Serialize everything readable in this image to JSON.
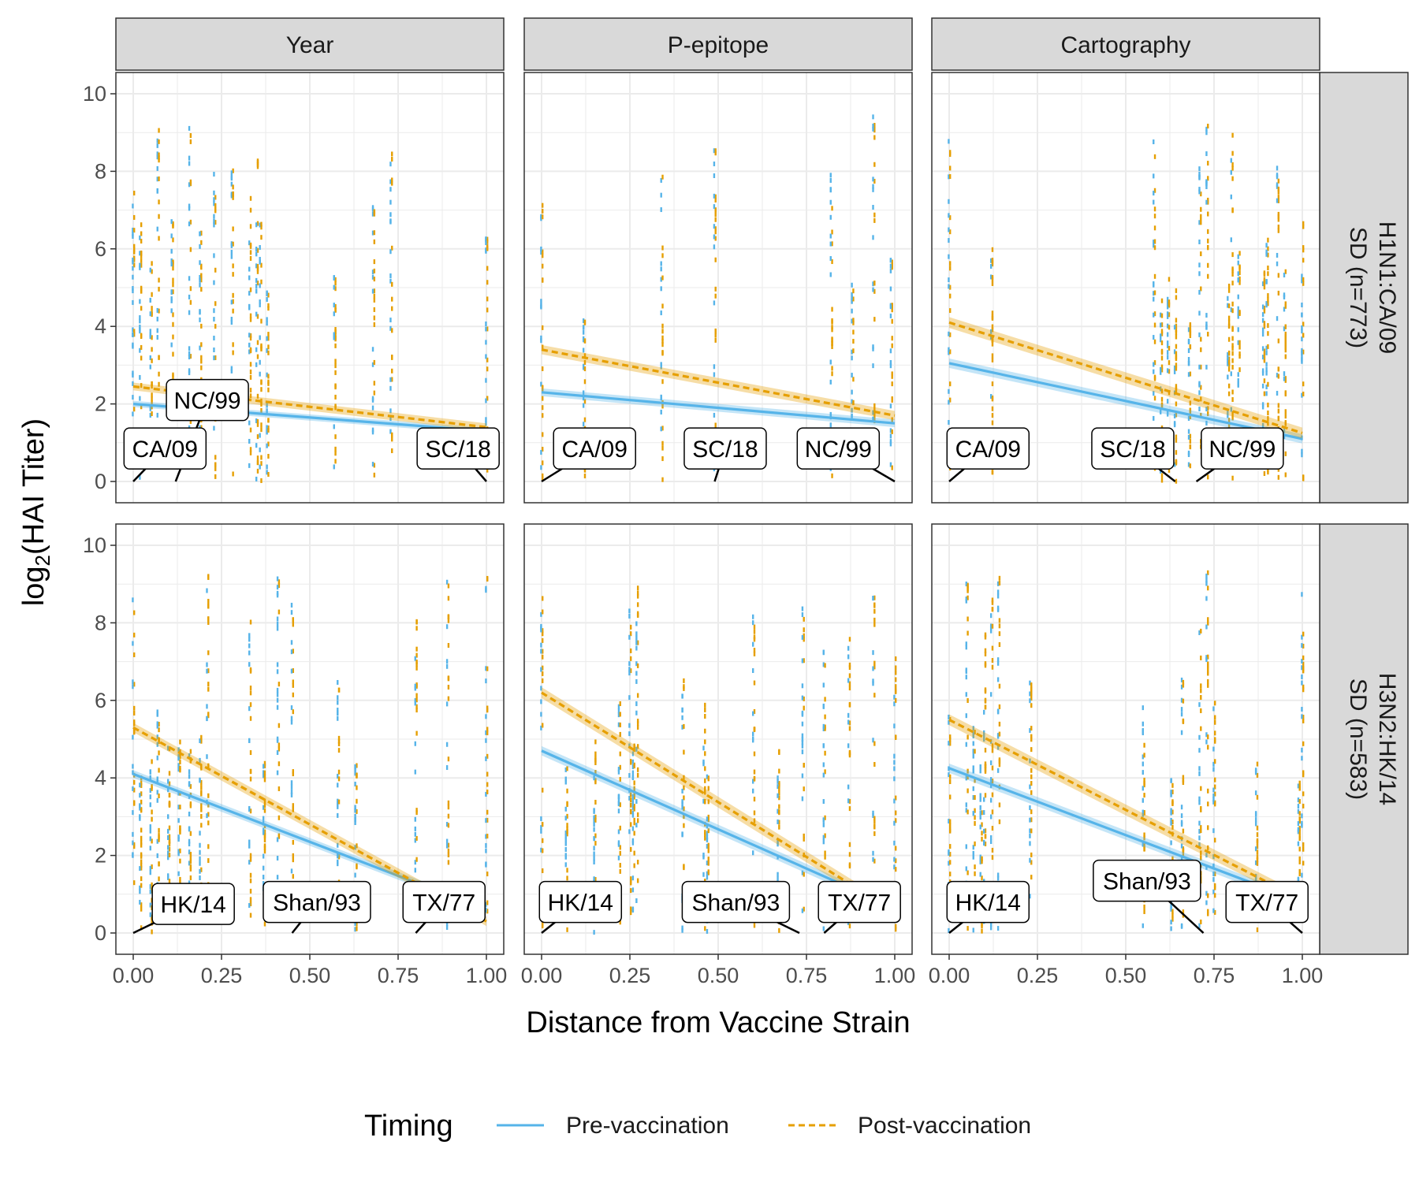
{
  "chart_data": {
    "type": "scatter",
    "xlabel": "Distance from Vaccine Strain",
    "ylabel_base": "log",
    "ylabel_sub": "2",
    "ylabel_rest": "(HAI Titer)",
    "xlim": [
      0,
      1
    ],
    "ylim": [
      0,
      10
    ],
    "x_ticks": [
      "0.00",
      "0.25",
      "0.50",
      "0.75",
      "1.00"
    ],
    "y_ticks": [
      "0",
      "2",
      "4",
      "6",
      "8",
      "10"
    ],
    "grid": true,
    "legend": {
      "position": "bottom",
      "title": "Timing",
      "entries": [
        {
          "label": "Pre-vaccination",
          "color": "#56B4E9",
          "dash": "solid"
        },
        {
          "label": "Post-vaccination",
          "color": "#E69F00",
          "dash": "dashed"
        }
      ]
    },
    "columns": [
      "Year",
      "P-epitope",
      "Cartography"
    ],
    "rows": [
      {
        "line1": "H1N1:CA/09",
        "line2": "SD (n=773)"
      },
      {
        "line1": "H3N2:HK/14",
        "line2": "SD (n=583)"
      }
    ],
    "panels": [
      {
        "row": 0,
        "col": 0,
        "strains_x": [
          0.0,
          0.02,
          0.05,
          0.07,
          0.11,
          0.16,
          0.19,
          0.23,
          0.28,
          0.33,
          0.35,
          0.36,
          0.38,
          0.57,
          0.68,
          0.73,
          1.0
        ],
        "fit_pre": [
          2.0,
          1.3
        ],
        "band_pre": 0.08,
        "fit_post": [
          2.45,
          1.4
        ],
        "band_post": 0.1,
        "labels": [
          {
            "text": "NC/99",
            "x": 0.21,
            "y": 2.1,
            "lx": 0.12,
            "ly": 0.0
          },
          {
            "text": "CA/09",
            "x": 0.09,
            "y": 0.85,
            "lx": 0.0,
            "ly": 0.0
          },
          {
            "text": "SC/18",
            "x": 0.92,
            "y": 0.85,
            "lx": 1.0,
            "ly": 0.0
          }
        ]
      },
      {
        "row": 0,
        "col": 1,
        "strains_x": [
          0.0,
          0.12,
          0.34,
          0.49,
          0.82,
          0.88,
          0.94,
          0.99
        ],
        "fit_pre": [
          2.3,
          1.5
        ],
        "band_pre": 0.1,
        "fit_post": [
          3.4,
          1.7
        ],
        "band_post": 0.12,
        "labels": [
          {
            "text": "CA/09",
            "x": 0.15,
            "y": 0.85,
            "lx": 0.0,
            "ly": 0.0
          },
          {
            "text": "SC/18",
            "x": 0.52,
            "y": 0.85,
            "lx": 0.49,
            "ly": 0.0
          },
          {
            "text": "NC/99",
            "x": 0.84,
            "y": 0.85,
            "lx": 1.0,
            "ly": 0.0
          }
        ]
      },
      {
        "row": 0,
        "col": 2,
        "strains_x": [
          0.0,
          0.12,
          0.58,
          0.6,
          0.62,
          0.64,
          0.68,
          0.71,
          0.73,
          0.79,
          0.8,
          0.82,
          0.89,
          0.9,
          0.93,
          0.95,
          1.0
        ],
        "fit_pre": [
          3.05,
          1.1
        ],
        "band_pre": 0.12,
        "fit_post": [
          4.1,
          1.25
        ],
        "band_post": 0.14,
        "labels": [
          {
            "text": "CA/09",
            "x": 0.11,
            "y": 0.85,
            "lx": 0.0,
            "ly": 0.0
          },
          {
            "text": "SC/18",
            "x": 0.52,
            "y": 0.85,
            "lx": 0.64,
            "ly": 0.0
          },
          {
            "text": "NC/99",
            "x": 0.83,
            "y": 0.85,
            "lx": 0.7,
            "ly": 0.0
          }
        ]
      },
      {
        "row": 1,
        "col": 0,
        "strains_x": [
          0.0,
          0.02,
          0.05,
          0.07,
          0.1,
          0.13,
          0.16,
          0.19,
          0.21,
          0.33,
          0.37,
          0.41,
          0.45,
          0.58,
          0.63,
          0.8,
          0.89,
          1.0
        ],
        "fit_pre": [
          4.1,
          0.6
        ],
        "band_pre": 0.1,
        "fit_post": [
          5.3,
          0.3
        ],
        "band_post": 0.12,
        "labels": [
          {
            "text": "HK/14",
            "x": 0.17,
            "y": 0.75,
            "lx": 0.0,
            "ly": 0.0
          },
          {
            "text": "Shan/93",
            "x": 0.52,
            "y": 0.8,
            "lx": 0.45,
            "ly": 0.0
          },
          {
            "text": "TX/77",
            "x": 0.88,
            "y": 0.8,
            "lx": 0.8,
            "ly": 0.0
          }
        ]
      },
      {
        "row": 1,
        "col": 1,
        "strains_x": [
          0.0,
          0.07,
          0.15,
          0.22,
          0.25,
          0.26,
          0.27,
          0.4,
          0.46,
          0.47,
          0.6,
          0.67,
          0.74,
          0.8,
          0.87,
          0.94,
          1.0
        ],
        "fit_pre": [
          4.7,
          0.65
        ],
        "band_pre": 0.12,
        "fit_post": [
          6.2,
          0.55
        ],
        "band_post": 0.14,
        "labels": [
          {
            "text": "HK/14",
            "x": 0.11,
            "y": 0.8,
            "lx": 0.0,
            "ly": 0.0
          },
          {
            "text": "Shan/93",
            "x": 0.55,
            "y": 0.8,
            "lx": 0.73,
            "ly": 0.0
          },
          {
            "text": "TX/77",
            "x": 0.9,
            "y": 0.8,
            "lx": 0.8,
            "ly": 0.0
          }
        ]
      },
      {
        "row": 1,
        "col": 2,
        "strains_x": [
          0.0,
          0.05,
          0.07,
          0.09,
          0.1,
          0.12,
          0.14,
          0.23,
          0.55,
          0.63,
          0.66,
          0.71,
          0.73,
          0.75,
          0.87,
          0.99,
          1.0
        ],
        "fit_pre": [
          4.25,
          0.8
        ],
        "band_pre": 0.12,
        "fit_post": [
          5.5,
          0.85
        ],
        "band_post": 0.14,
        "labels": [
          {
            "text": "HK/14",
            "x": 0.11,
            "y": 0.8,
            "lx": 0.0,
            "ly": 0.0
          },
          {
            "text": "Shan/93",
            "x": 0.56,
            "y": 1.35,
            "lx": 0.72,
            "ly": 0.0
          },
          {
            "text": "TX/77",
            "x": 0.9,
            "y": 0.8,
            "lx": 1.0,
            "ly": 0.0
          }
        ]
      }
    ]
  }
}
